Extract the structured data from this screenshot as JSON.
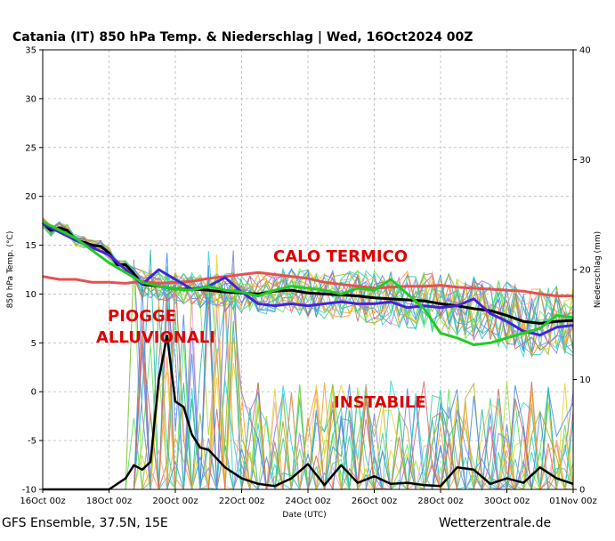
{
  "chart_data": {
    "type": "line",
    "title": "Catania  (IT)  850 hPa Temp. & Niederschlag | Wed, 16Oct2024 00Z",
    "xlabel": "Date (UTC)",
    "ylabel": "850 hPa Temp. (°C)",
    "y2label": "Niederschlag (mm)",
    "x_ticks": [
      "16Oct 00z",
      "18Oct 00z",
      "20Oct 00z",
      "22Oct 00z",
      "24Oct 00z",
      "26Oct 00z",
      "28Oct 00z",
      "30Oct 00z",
      "01Nov 00z"
    ],
    "x_range_days": [
      0,
      16
    ],
    "ylim": [
      -10,
      35
    ],
    "y_ticks": [
      -10,
      -5,
      0,
      5,
      10,
      15,
      20,
      25,
      30,
      35
    ],
    "y2lim": [
      0,
      40
    ],
    "y2_ticks": [
      0,
      10,
      20,
      30,
      40
    ],
    "grid": true,
    "annotations": [
      "CALO TERMICO",
      "PIOGGE",
      "ALLUVIONALI",
      "INSTABILE"
    ],
    "footer_left": "GFS Ensemble, 37.5N, 15E",
    "footer_right": "Wetterzentrale.de",
    "series": [
      {
        "role": "climatology",
        "color": "#e85050",
        "x": [
          0,
          0.5,
          1,
          1.5,
          2,
          2.5,
          3,
          3.5,
          4,
          4.5,
          5,
          5.5,
          6,
          6.5,
          7,
          7.5,
          8,
          8.5,
          9,
          9.5,
          10,
          10.5,
          11,
          11.5,
          12,
          12.5,
          13,
          13.5,
          14,
          14.5,
          15,
          15.5,
          16
        ],
        "values": [
          11.8,
          11.5,
          11.5,
          11.2,
          11.2,
          11.1,
          11.3,
          11.1,
          11.2,
          11.3,
          11.6,
          11.8,
          12.0,
          12.2,
          12.0,
          11.8,
          11.6,
          11.2,
          11.0,
          10.8,
          10.6,
          10.7,
          10.8,
          10.8,
          10.9,
          10.7,
          10.6,
          10.5,
          10.4,
          10.3,
          10.0,
          9.8,
          9.8
        ]
      },
      {
        "role": "ensemble-mean-temp",
        "color": "#000000",
        "x": [
          0,
          0.25,
          0.5,
          0.75,
          1,
          1.25,
          1.5,
          1.75,
          2,
          2.25,
          2.5,
          2.75,
          3,
          3.5,
          4,
          4.5,
          5,
          5.5,
          6,
          6.5,
          7,
          7.5,
          8,
          8.5,
          9,
          9.5,
          10,
          10.5,
          11,
          11.5,
          12,
          12.5,
          13,
          13.5,
          14,
          14.5,
          15,
          15.5,
          16
        ],
        "values": [
          17.3,
          16.5,
          16.8,
          16.5,
          15.5,
          15.3,
          15.0,
          14.9,
          14.2,
          13.0,
          13.0,
          12.1,
          11.0,
          10.8,
          10.5,
          10.5,
          10.4,
          10.2,
          10.1,
          10.0,
          10.3,
          10.4,
          10.1,
          10.0,
          9.9,
          9.8,
          9.6,
          9.5,
          9.4,
          9.3,
          9.0,
          8.8,
          8.5,
          8.3,
          7.8,
          7.2,
          7.0,
          7.2,
          7.3
        ]
      },
      {
        "role": "ensemble-mean-precip",
        "color": "#000000",
        "axis": "y2",
        "x": [
          0,
          1,
          2,
          2.5,
          2.75,
          3,
          3.25,
          3.5,
          3.75,
          4,
          4.25,
          4.5,
          4.75,
          5,
          5.5,
          6,
          6.5,
          7,
          7.5,
          8,
          8.5,
          9,
          9.5,
          10,
          10.5,
          11,
          11.5,
          12,
          12.5,
          13,
          13.5,
          14,
          14.5,
          15,
          15.5,
          16
        ],
        "values": [
          0,
          0,
          0,
          1.0,
          2.2,
          1.8,
          2.5,
          10.0,
          14.0,
          8.0,
          7.5,
          5.0,
          3.8,
          3.6,
          2.0,
          1.0,
          0.5,
          0.3,
          1.0,
          2.3,
          0.4,
          2.2,
          0.6,
          1.2,
          0.5,
          0.6,
          0.4,
          0.3,
          2.0,
          1.8,
          0.5,
          1.0,
          0.6,
          2.0,
          1.0,
          0.5
        ]
      },
      {
        "role": "operational-temp",
        "color": "#4422dd",
        "x": [
          0,
          1,
          2,
          3,
          3.5,
          4,
          4.5,
          5,
          5.5,
          6,
          6.5,
          7,
          7.5,
          8,
          8.5,
          9,
          9.5,
          10,
          10.5,
          11,
          11.5,
          12,
          12.5,
          13,
          13.5,
          14,
          14.5,
          15,
          15.5,
          16
        ],
        "values": [
          17.2,
          15.5,
          14.0,
          11.0,
          12.5,
          11.5,
          10.5,
          10.8,
          11.7,
          10.2,
          9.0,
          8.8,
          9.0,
          8.8,
          9.0,
          9.2,
          9.0,
          9.0,
          9.2,
          8.6,
          8.8,
          8.6,
          8.8,
          9.5,
          8.0,
          7.2,
          6.2,
          5.8,
          6.6,
          6.8
        ]
      },
      {
        "role": "control-temp",
        "color": "#22cc22",
        "x": [
          0,
          1,
          2,
          3,
          3.5,
          4,
          4.5,
          5,
          5.5,
          6,
          6.5,
          7,
          7.5,
          8,
          8.5,
          9,
          9.5,
          10,
          10.5,
          11,
          11.5,
          12,
          12.5,
          13,
          13.5,
          14,
          14.5,
          15,
          15.5,
          16
        ],
        "values": [
          17.4,
          15.7,
          13.2,
          11.2,
          10.8,
          10.5,
          10.4,
          10.8,
          10.4,
          10.2,
          9.8,
          10.4,
          10.8,
          10.6,
          10.4,
          10.0,
          10.6,
          10.4,
          11.5,
          10.0,
          8.5,
          6.0,
          5.5,
          4.8,
          5.0,
          5.5,
          6.0,
          6.5,
          7.8,
          7.6
        ]
      }
    ]
  }
}
